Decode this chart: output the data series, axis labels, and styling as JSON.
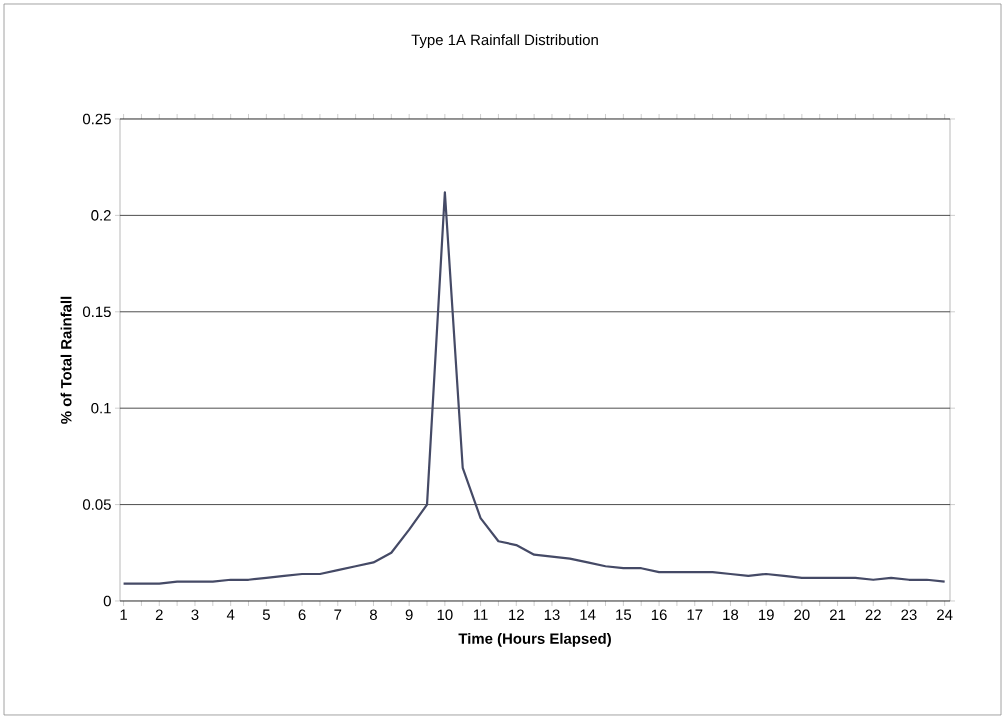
{
  "chart_data": {
    "type": "line",
    "title": "Type 1A Rainfall Distribution",
    "xlabel": "Time (Hours Elapsed)",
    "ylabel": "% of Total Rainfall",
    "categories": [
      "1",
      null,
      "2",
      null,
      "3",
      null,
      "4",
      null,
      "5",
      null,
      "6",
      null,
      "7",
      null,
      "8",
      null,
      "9",
      null,
      "10",
      null,
      "11",
      null,
      "12",
      null,
      "13",
      null,
      "14",
      null,
      "15",
      null,
      "16",
      null,
      "17",
      null,
      "18",
      null,
      "19",
      null,
      "20",
      null,
      "21",
      null,
      "22",
      null,
      "23",
      null,
      "24"
    ],
    "series": [
      {
        "color": "#454a66",
        "values": [
          0.009,
          0.009,
          0.009,
          0.01,
          0.01,
          0.01,
          0.011,
          0.011,
          0.012,
          0.013,
          0.014,
          0.014,
          0.016,
          0.018,
          0.02,
          0.025,
          0.037,
          0.05,
          0.212,
          0.069,
          0.043,
          0.031,
          0.029,
          0.024,
          0.023,
          0.022,
          0.02,
          0.018,
          0.017,
          0.017,
          0.015,
          0.015,
          0.015,
          0.015,
          0.014,
          0.013,
          0.014,
          0.013,
          0.012,
          0.012,
          0.012,
          0.012,
          0.011,
          0.012,
          0.011,
          0.011,
          0.01
        ]
      }
    ],
    "ylim": [
      0,
      0.25
    ],
    "yticks": [
      0,
      0.05,
      0.1,
      0.15,
      0.2,
      0.25
    ],
    "grid": "y",
    "marker": "none",
    "line_style": "solid"
  }
}
